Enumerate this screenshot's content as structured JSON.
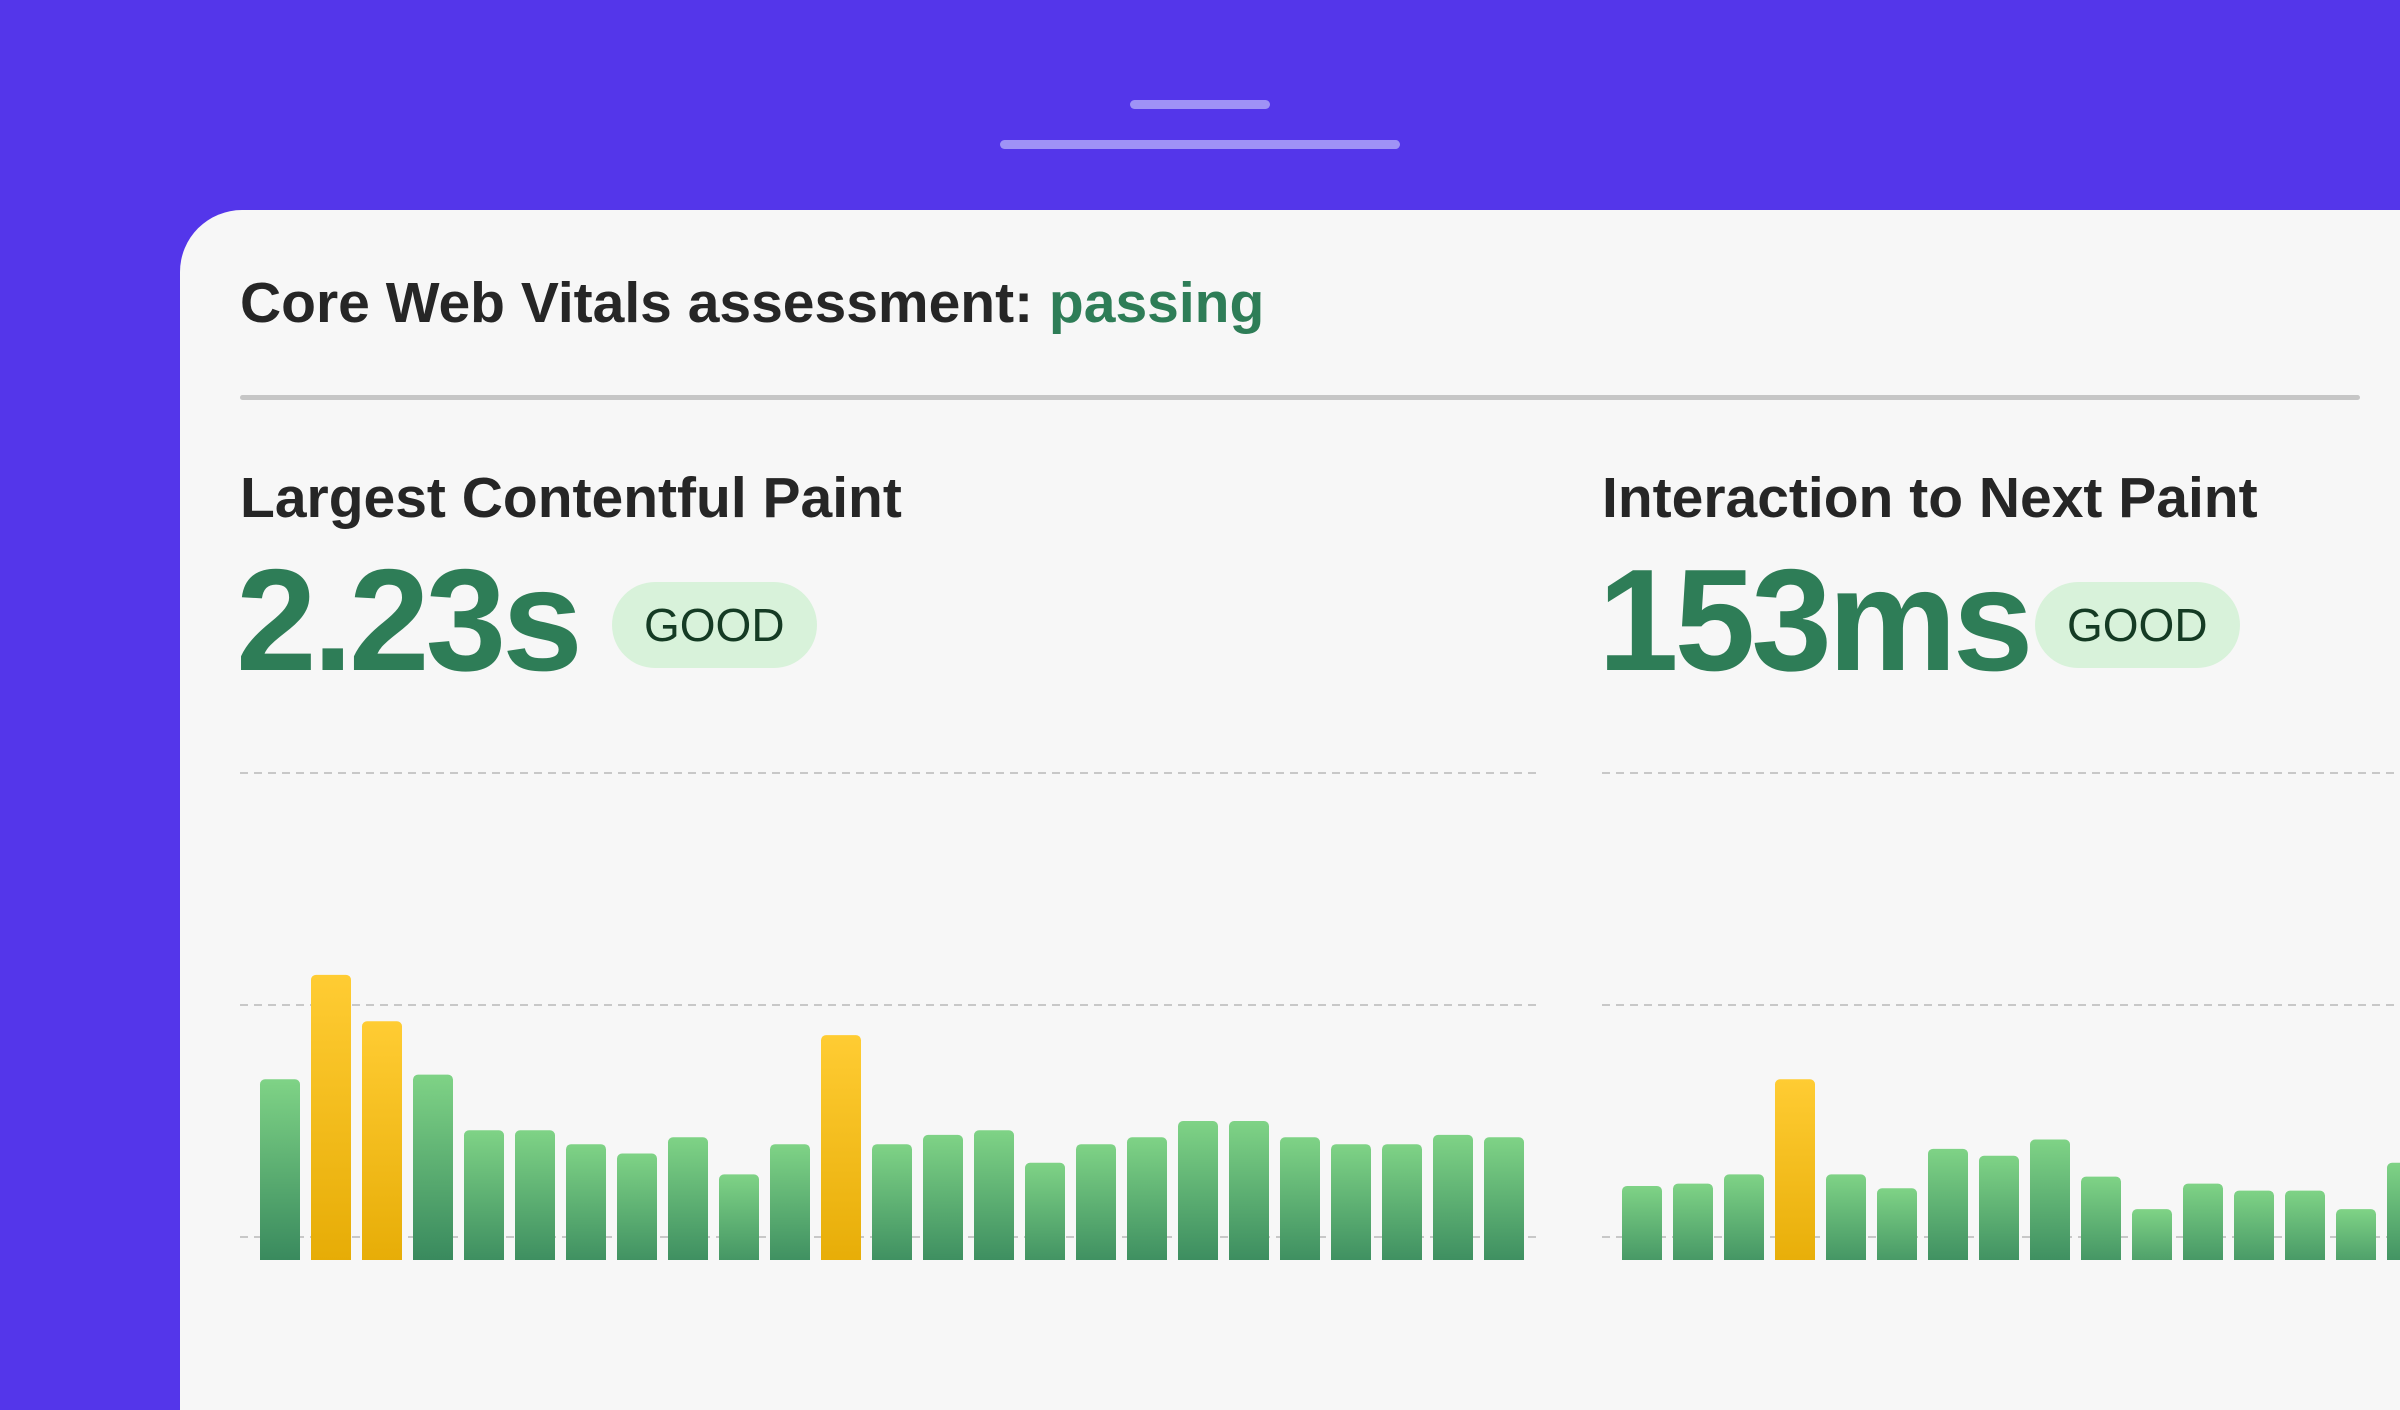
{
  "header": {
    "title_prefix": "Core Web Vitals assessment: ",
    "status": "passing"
  },
  "colors": {
    "background": "#5436ea",
    "status_good": "#2e7d57",
    "badge_bg": "#d8f2da",
    "bar_good_top": "#7fd386",
    "bar_good_bottom": "#2a7a55",
    "bar_warn_top": "#ffcc33",
    "bar_warn_bottom": "#e3a800"
  },
  "metrics": [
    {
      "title": "Largest Contentful Paint",
      "value": "2.23s",
      "badge": "GOOD"
    },
    {
      "title": "Interaction to Next Paint",
      "value": "153ms",
      "badge": "GOOD"
    }
  ],
  "chart_data": [
    {
      "type": "bar",
      "grid": true,
      "gridlines": [
        0,
        1,
        2
      ],
      "values": [
        0.68,
        1.13,
        0.93,
        0.7,
        0.46,
        0.46,
        0.4,
        0.36,
        0.43,
        0.27,
        0.4,
        0.87,
        0.4,
        0.44,
        0.46,
        0.32,
        0.4,
        0.43,
        0.5,
        0.5,
        0.43,
        0.4,
        0.4,
        0.44,
        0.43
      ],
      "status": [
        "good",
        "warn",
        "warn",
        "good",
        "good",
        "good",
        "good",
        "good",
        "good",
        "good",
        "good",
        "warn",
        "good",
        "good",
        "good",
        "good",
        "good",
        "good",
        "good",
        "good",
        "good",
        "good",
        "good",
        "good",
        "good"
      ]
    },
    {
      "type": "bar",
      "grid": true,
      "gridlines": [
        0,
        1,
        2
      ],
      "values": [
        0.22,
        0.23,
        0.27,
        0.68,
        0.27,
        0.21,
        0.38,
        0.35,
        0.42,
        0.26,
        0.12,
        0.23,
        0.2,
        0.2,
        0.12,
        0.32
      ],
      "status": [
        "good",
        "good",
        "good",
        "warn",
        "good",
        "good",
        "good",
        "good",
        "good",
        "good",
        "good",
        "good",
        "good",
        "good",
        "good",
        "good"
      ]
    }
  ]
}
